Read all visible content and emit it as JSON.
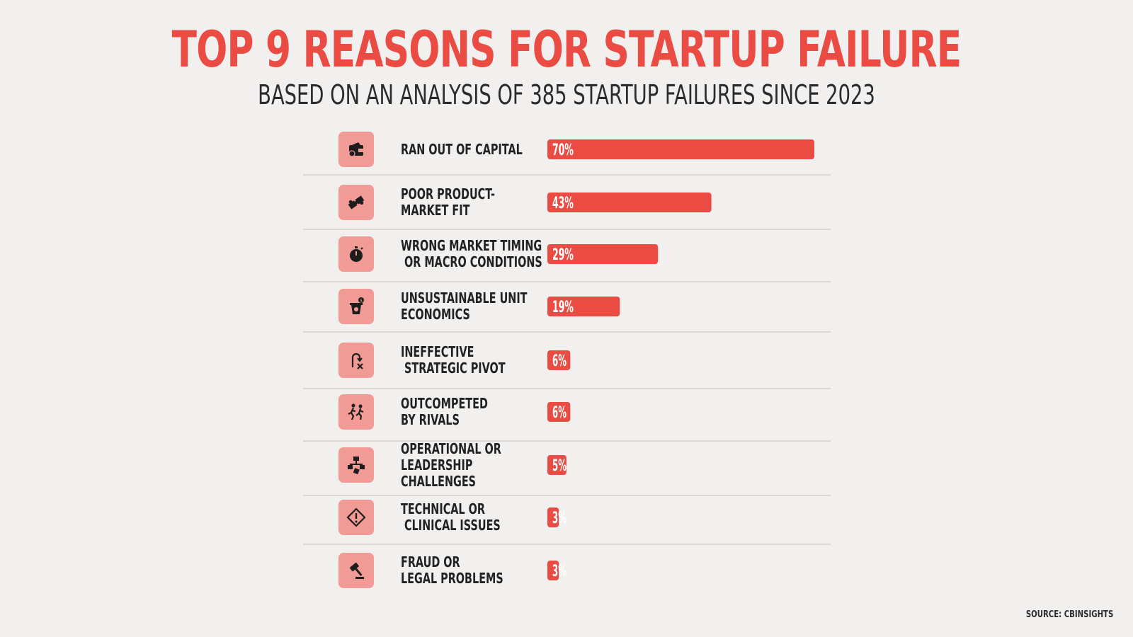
{
  "header": {
    "title": "TOP 9 REASONS FOR STARTUP FAILURE",
    "subtitle": "BASED ON AN ANALYSIS OF 385 STARTUP FAILURES SINCE 2023"
  },
  "footer": {
    "source": "SOURCE: CBINSIGHTS"
  },
  "colors": {
    "accent": "#ea4b43",
    "icon_bg": "#f29a95",
    "background": "#f1f0ef"
  },
  "chart_data": {
    "type": "bar",
    "orientation": "horizontal",
    "title": "TOP 9 REASONS FOR STARTUP FAILURE",
    "subtitle": "BASED ON AN ANALYSIS OF 385 STARTUP FAILURES SINCE 2023",
    "xlim": [
      0,
      70
    ],
    "categories": [
      "RAN OUT OF CAPITAL",
      "POOR PRODUCT-\nMARKET FIT",
      "WRONG MARKET TIMING\n OR MACRO CONDITIONS",
      "UNSUSTAINABLE UNIT\nECONOMICS",
      "INEFFECTIVE\n STRATEGIC PIVOT",
      "OUTCOMPETED\nBY RIVALS",
      "OPERATIONAL OR\nLEADERSHIP\nCHALLENGES",
      "TECHNICAL OR\n CLINICAL ISSUES",
      "FRAUD OR\nLEGAL PROBLEMS"
    ],
    "values": [
      70,
      43,
      29,
      19,
      6,
      6,
      5,
      3,
      3
    ],
    "value_labels": [
      "70%",
      "43%",
      "29%",
      "19%",
      "6%",
      "6%",
      "5%",
      "3%",
      "3%"
    ],
    "icons": [
      "wallet-icon",
      "puzzle-icon",
      "stopwatch-icon",
      "money-bag-icon",
      "pivot-arrow-icon",
      "runners-icon",
      "org-chart-icon",
      "warning-diamond-icon",
      "gavel-icon"
    ]
  }
}
